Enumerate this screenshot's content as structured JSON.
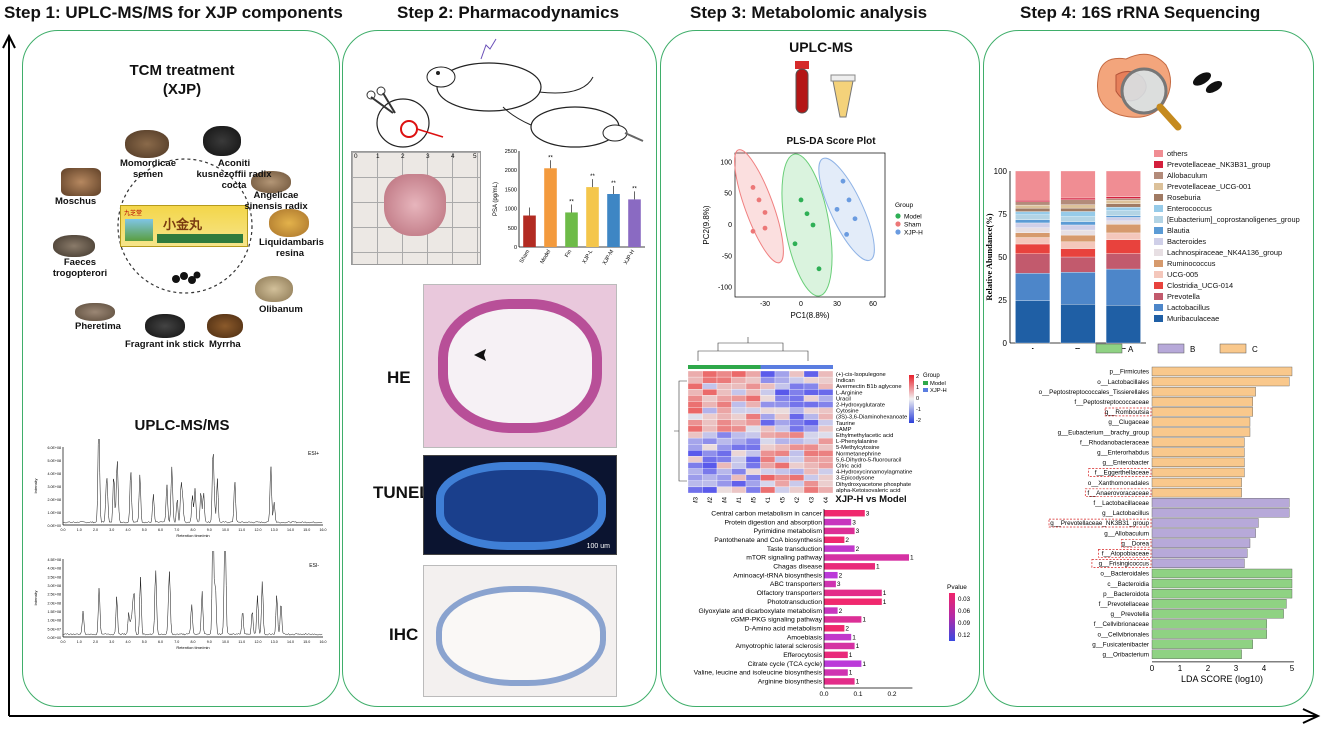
{
  "steps": {
    "s1": "Step 1: UPLC-MS/MS for XJP components",
    "s2": "Step 2: Pharmacodynamics",
    "s3": "Step 3: Metabolomic analysis",
    "s4": "Step 4: 16S rRNA Sequencing"
  },
  "p1": {
    "tcm_title": "TCM treatment",
    "tcm_sub": "(XJP)",
    "herbs": [
      "Momordicae semen",
      "Aconiti kusnezoffii radix cocta",
      "Angelicae sinensis radix",
      "Moschus",
      "Liquidambaris resina",
      "Faeces trogopterori",
      "Olibanum",
      "Pheretima",
      "Fragrant ink stick",
      "Myrrha"
    ],
    "box_text": "小金丸",
    "box_brand": "九芝堂",
    "uplc_title": "UPLC-MS/MS",
    "esi_pos": "ESI+",
    "esi_neg": "ESI-",
    "xlab": "Retention time/min",
    "ylab": "Intensity",
    "yticks_pos": [
      "6.0E+08",
      "5.0E+08",
      "4.0E+08",
      "3.0E+08",
      "2.0E+08",
      "1.0E+08",
      "0.0E+00"
    ],
    "yticks_neg": [
      "4.5E+08",
      "4.0E+08",
      "3.5E+08",
      "3.0E+08",
      "2.5E+08",
      "2.0E+08",
      "1.5E+08",
      "1.0E+08",
      "5.0E+07",
      "0.0E+00"
    ],
    "xticks": [
      "0.0",
      "1.0",
      "2.0",
      "3.0",
      "4.0",
      "5.0",
      "6.0",
      "7.0",
      "8.0",
      "9.0",
      "10.0",
      "11.0",
      "12.0",
      "13.0",
      "14.0",
      "15.0",
      "16.0"
    ]
  },
  "p2": {
    "ruler": [
      "0",
      "1",
      "2",
      "3",
      "4",
      "5"
    ],
    "psa_ylabel": "PSA (pg/mL)",
    "psa_yticks": [
      "2500",
      "2000",
      "1500",
      "1000",
      "500",
      "0"
    ],
    "psa": {
      "categories": [
        "Sham",
        "Model",
        "Fin",
        "XJP-L",
        "XJP-M",
        "XJP-H"
      ],
      "values": [
        820,
        2050,
        900,
        1560,
        1380,
        1240
      ],
      "sig": [
        "",
        "**",
        "**",
        "**",
        "**",
        "**"
      ],
      "colors": [
        "#b22b22",
        "#f39a3d",
        "#6dbb48",
        "#f4c64b",
        "#3e86c4",
        "#8a6ac2"
      ]
    },
    "he": "HE",
    "tunel": "TUNEL",
    "ihc": "IHC",
    "scale": "100 um"
  },
  "p3": {
    "uplc": "UPLC-MS",
    "pls_title": "PLS-DA Score Plot",
    "pc1": "PC1(8.8%)",
    "pc2": "PC2(9.8%)",
    "xticks": [
      "-30",
      "0",
      "30",
      "60"
    ],
    "yticks": [
      "100",
      "50",
      "0",
      "-50",
      "-100"
    ],
    "group_title": "Group",
    "groups": [
      "Model",
      "Sham",
      "XJP-H"
    ],
    "hm_group": "Group",
    "hm_groups": [
      "Model",
      "XJP-H"
    ],
    "hm_scale": [
      "2",
      "1",
      "0",
      "-1",
      "-2"
    ],
    "metabolites": [
      "(+)-cis-Isopulegone",
      "Indican",
      "Avermectin B1b aglycone",
      "L-Arginine",
      "Uracil",
      "2-Hydroxyglutarate",
      "Cytosine",
      "(3S)-3,6-Diaminohexanoate",
      "Taurine",
      "cAMP",
      "Ethylmethylacetic acid",
      "L-Phenylalanine",
      "5-Methylcytosine",
      "Normetanephrine",
      "5,6-Dihydro-5-fluorouracil",
      "Citric acid",
      "4-Hydroxycinnamoylagmatine",
      "3-Epicodysone",
      "Dihydroxyacetone phosphate",
      "alpha-Ketoisovaleric acid"
    ],
    "samples": [
      "M3",
      "M2",
      "M4",
      "M1",
      "M5",
      "X1",
      "X5",
      "X2",
      "X3",
      "X4"
    ],
    "kegg_title": "XJP-H vs Model",
    "kegg": {
      "names": [
        "Central carbon metabolism in cancer",
        "Protein digestion and absorption",
        "Pyrimidine metabolism",
        "Pantothenate and CoA biosynthesis",
        "Taste transduction",
        "mTOR signaling pathway",
        "Chagas disease",
        "Aminoacyl-tRNA biosynthesis",
        "ABC transporters",
        "Olfactory transporters",
        "Phototransduction",
        "Glyoxylate and dicarboxylate metabolism",
        "cGMP-PKG signaling pathway",
        "D-Amino acid metabolism",
        "Amoebiasis",
        "Amyotrophic lateral sclerosis",
        "Efferocytosis",
        "Citrate cycle (TCA cycle)",
        "Valine, leucine and isoleucine biosynthesis",
        "Arginine biosynthesis"
      ],
      "values": [
        0.12,
        0.08,
        0.09,
        0.06,
        0.09,
        0.25,
        0.15,
        0.04,
        0.035,
        0.17,
        0.17,
        0.04,
        0.11,
        0.06,
        0.08,
        0.09,
        0.07,
        0.11,
        0.07,
        0.09
      ],
      "counts": [
        "3",
        "3",
        "3",
        "2",
        "2",
        "1",
        "1",
        "2",
        "3",
        "1",
        "1",
        "2",
        "1",
        "2",
        "1",
        "1",
        "1",
        "1",
        "1",
        "1"
      ],
      "xticks": [
        "0.0",
        "0.1",
        "0.2"
      ],
      "pvalue": "Pvalue",
      "pticks": [
        "0.03",
        "0.06",
        "0.09",
        "0.12"
      ]
    }
  },
  "p4": {
    "ylabel": "Relative Abundance(%)",
    "yticks": [
      "100",
      "75",
      "50",
      "25",
      "0"
    ],
    "groups": [
      "A",
      "B",
      "C"
    ],
    "taxa": [
      "others",
      "Prevotellaceae_NK3B31_group",
      "Allobaculum",
      "Prevotellaceae_UCG-001",
      "Roseburia",
      "Enterococcus",
      "[Eubacterium]_coprostanoligenes_group",
      "Blautia",
      "Bacteroides",
      "Lachnospiraceae_NK4A136_group",
      "Ruminococcus",
      "UCG-005",
      "Clostridia_UCG-014",
      "Prevotella",
      "Lactobacillus",
      "Muribaculaceae"
    ],
    "taxa_colors": [
      "#f08d93",
      "#d41f3c",
      "#b38b7a",
      "#dcc19a",
      "#a07a63",
      "#96cbe9",
      "#b3d4e5",
      "#5b9bd5",
      "#cfcfe8",
      "#e7dfe3",
      "#d69a6d",
      "#f4c7bb",
      "#e8423d",
      "#c25a6d",
      "#4d86c9",
      "#1f5fa5"
    ],
    "stack": {
      "A": [
        18,
        1,
        2,
        2,
        2,
        2,
        3,
        2,
        3,
        3,
        3,
        4,
        6,
        12,
        17,
        26
      ],
      "B": [
        16,
        1,
        3,
        2,
        2,
        3,
        3,
        2,
        3,
        3,
        4,
        4,
        5,
        9,
        19,
        23
      ],
      "C": [
        15,
        1,
        1,
        2,
        2,
        2,
        3,
        1,
        2,
        2,
        5,
        4,
        8,
        9,
        21,
        22
      ]
    },
    "lda_legend": [
      "A",
      "B",
      "C"
    ],
    "lda_colors": [
      "#8fd283",
      "#b7a9d9",
      "#f9c88c"
    ],
    "lda": [
      {
        "n": "p__Firmicutes",
        "v": 5.0,
        "g": 2,
        "h": false
      },
      {
        "n": "o__Lactobacillales",
        "v": 4.9,
        "g": 2,
        "h": false
      },
      {
        "n": "o__Peptostreptococcales_Tissierellales",
        "v": 3.7,
        "g": 2,
        "h": false
      },
      {
        "n": "f__Peptostreptococcaceae",
        "v": 3.6,
        "g": 2,
        "h": false
      },
      {
        "n": "g__Romboutsia",
        "v": 3.6,
        "g": 2,
        "h": true
      },
      {
        "n": "g__Clugaceae",
        "v": 3.5,
        "g": 2,
        "h": false
      },
      {
        "n": "g__Eubacterium__brachy_group",
        "v": 3.5,
        "g": 2,
        "h": false
      },
      {
        "n": "f__Rhodanobacteraceae",
        "v": 3.3,
        "g": 2,
        "h": false
      },
      {
        "n": "g__Enterorhabdus",
        "v": 3.3,
        "g": 2,
        "h": false
      },
      {
        "n": "g__Enterobacter",
        "v": 3.3,
        "g": 2,
        "h": false
      },
      {
        "n": "f__Eggerthellaceae",
        "v": 3.3,
        "g": 2,
        "h": true
      },
      {
        "n": "o__Xanthomonadales",
        "v": 3.2,
        "g": 2,
        "h": false
      },
      {
        "n": "f__Anaerovoracaceae",
        "v": 3.2,
        "g": 2,
        "h": true
      },
      {
        "n": "f__Lactobacillaceae",
        "v": 4.9,
        "g": 1,
        "h": false
      },
      {
        "n": "g__Lactobacillus",
        "v": 4.9,
        "g": 1,
        "h": false
      },
      {
        "n": "g__Prevotellaceae_NK3B31_group",
        "v": 3.8,
        "g": 1,
        "h": true
      },
      {
        "n": "g__Allobaculum",
        "v": 3.7,
        "g": 1,
        "h": false
      },
      {
        "n": "g__Dorea",
        "v": 3.5,
        "g": 1,
        "h": true
      },
      {
        "n": "f__Atopobiaceae",
        "v": 3.4,
        "g": 1,
        "h": true
      },
      {
        "n": "g__Frisingicoccus",
        "v": 3.3,
        "g": 1,
        "h": true
      },
      {
        "n": "o__Bacteroidales",
        "v": 5.0,
        "g": 0,
        "h": false
      },
      {
        "n": "c__Bacteroidia",
        "v": 5.0,
        "g": 0,
        "h": false
      },
      {
        "n": "p__Bacteroidota",
        "v": 5.0,
        "g": 0,
        "h": false
      },
      {
        "n": "f__Prevotellaceae",
        "v": 4.8,
        "g": 0,
        "h": false
      },
      {
        "n": "g__Prevotella",
        "v": 4.7,
        "g": 0,
        "h": false
      },
      {
        "n": "f__Cellvibrionaceae",
        "v": 4.1,
        "g": 0,
        "h": false
      },
      {
        "n": "o__Cellvibrionales",
        "v": 4.1,
        "g": 0,
        "h": false
      },
      {
        "n": "g__Fusicatenibacter",
        "v": 3.6,
        "g": 0,
        "h": false
      },
      {
        "n": "g__Oribacterium",
        "v": 3.2,
        "g": 0,
        "h": false
      }
    ],
    "lda_xticks": [
      "0",
      "1",
      "2",
      "3",
      "4",
      "5"
    ],
    "lda_xlabel": "LDA SCORE (log10)"
  }
}
